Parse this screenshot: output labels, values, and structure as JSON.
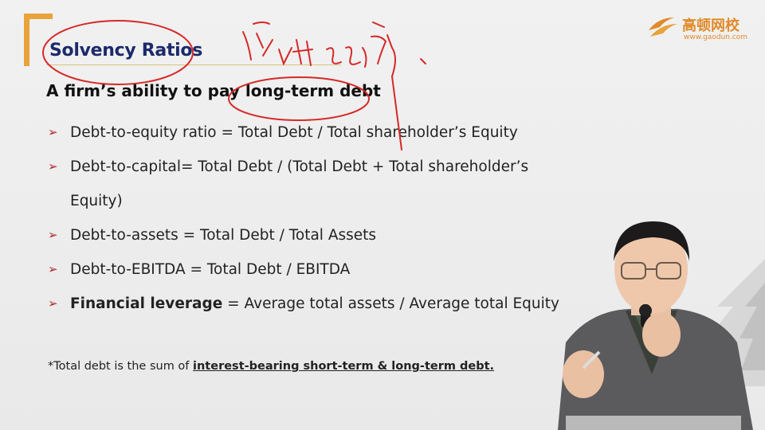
{
  "slide": {
    "title": "Solvency Ratios",
    "subtitle": "A firm’s ability to pay long-term debt",
    "bullets": [
      {
        "plain": "Debt-to-equity ratio = Total Debt / Total shareholder’s Equity"
      },
      {
        "plain": "Debt-to-capital= Total Debt / (Total Debt + Total shareholder’s"
      },
      {
        "cont": "Equity)"
      },
      {
        "plain": "Debt-to-assets = Total Debt / Total Assets"
      },
      {
        "plain": "Debt-to-EBITDA = Total Debt / EBITDA"
      },
      {
        "bold": "Financial leverage",
        "rest": " = Average total assets / Average total Equity"
      }
    ],
    "note": {
      "star": "*",
      "prefix": "Total debt is the sum of ",
      "emph": "interest-bearing short-term & long-term debt."
    },
    "bullet_glyph": "➢"
  },
  "logo": {
    "cn": "高顿网校",
    "url": "www.gaodun.com"
  },
  "colors": {
    "bracket": "#e8a33a",
    "title": "#1c2a6b",
    "annotation": "#d62828",
    "arrow": "#b3262a"
  }
}
